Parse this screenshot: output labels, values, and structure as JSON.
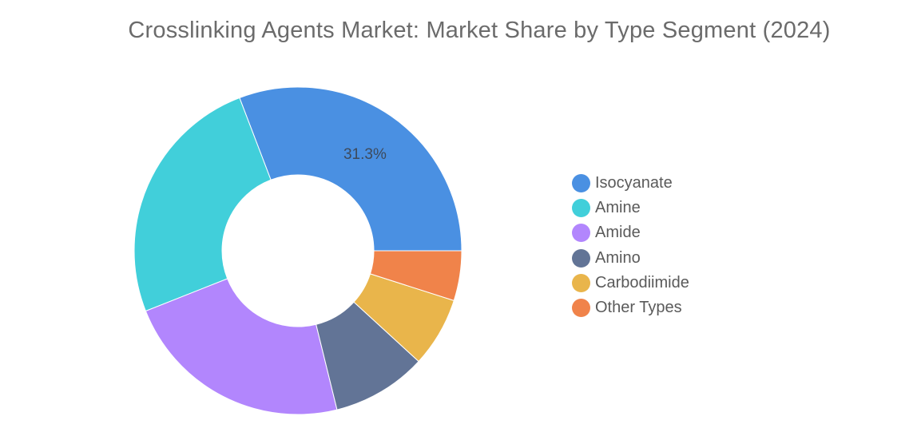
{
  "chart_data": {
    "type": "pie",
    "title": "Crosslinking Agents Market: Market Share by Type Segment (2024)",
    "categories": [
      "Isocyanate",
      "Amine",
      "Amide",
      "Amino",
      "Carbodiimide",
      "Other Types"
    ],
    "values": [
      31.3,
      25.6,
      23.2,
      9.5,
      7.0,
      5.0
    ],
    "colors": [
      "#4a90e2",
      "#41cfda",
      "#b286fd",
      "#627496",
      "#e9b54b",
      "#f0834a"
    ],
    "data_labels": [
      "31.3%",
      "",
      "",
      "",
      "",
      ""
    ],
    "legend_position": "right",
    "donut": true
  }
}
